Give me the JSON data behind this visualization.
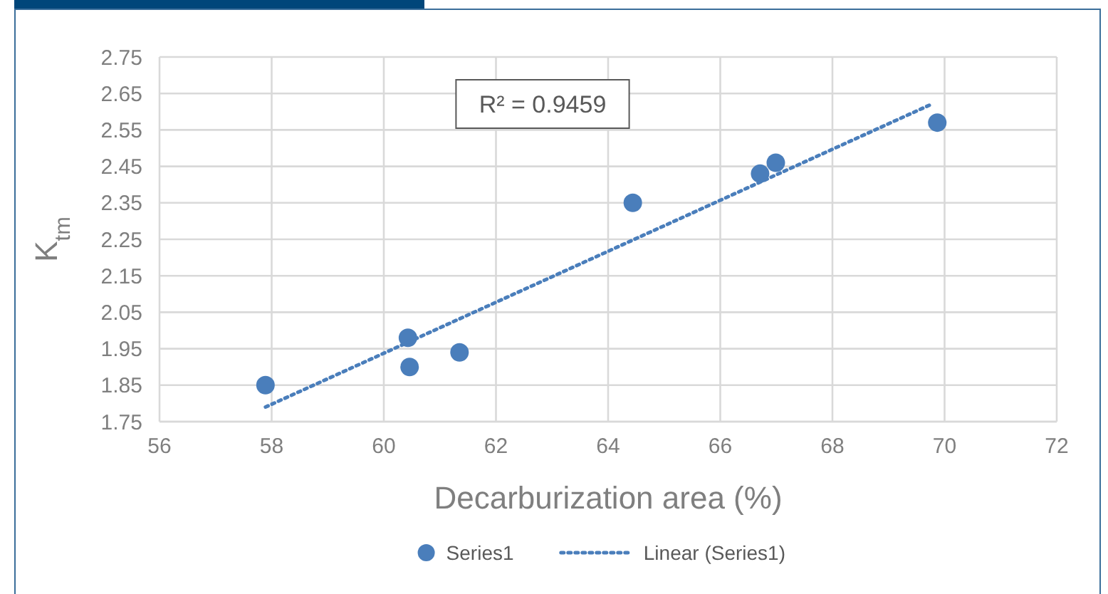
{
  "chart_data": {
    "type": "scatter",
    "xlabel": "Decarburization area (%)",
    "ylabel": "K$_{tm}$",
    "xlim": [
      56,
      72
    ],
    "xticks": [
      56,
      58,
      60,
      62,
      64,
      66,
      68,
      70,
      72
    ],
    "ylim": [
      1.75,
      2.75
    ],
    "yticks": [
      {
        "value": 1.75,
        "label": "1.75"
      },
      {
        "value": 1.85,
        "label": "1.85"
      },
      {
        "value": 1.95,
        "label": "1.95"
      },
      {
        "value": 2.05,
        "label": "2.05"
      },
      {
        "value": 2.15,
        "label": "2.15"
      },
      {
        "value": 2.25,
        "label": "2.25"
      },
      {
        "value": 2.35,
        "label": "2.35"
      },
      {
        "value": 2.45,
        "label": "2.45"
      },
      {
        "value": 2.55,
        "label": "2.55"
      },
      {
        "value": 2.65,
        "label": "2.65"
      },
      {
        "value": 2.75,
        "label": "2.75"
      }
    ],
    "grid": true,
    "legend": "bottom",
    "annotations": [
      "R² = 0.9459"
    ],
    "series": [
      {
        "name": "Series1",
        "marker": "circle",
        "color": "#4a7ebb",
        "x": [
          57.89,
          60.43,
          60.46,
          61.35,
          64.44,
          66.71,
          66.99,
          69.87
        ],
        "values": [
          1.85,
          1.98,
          1.9,
          1.94,
          2.35,
          2.43,
          2.46,
          2.57
        ]
      },
      {
        "name": "Linear (Series1)",
        "type": "line",
        "line_style": "dotted",
        "marker": "none",
        "color": "#4a7ebb",
        "x": [
          57.89,
          69.76
        ],
        "values": [
          1.79,
          2.62
        ]
      }
    ]
  }
}
